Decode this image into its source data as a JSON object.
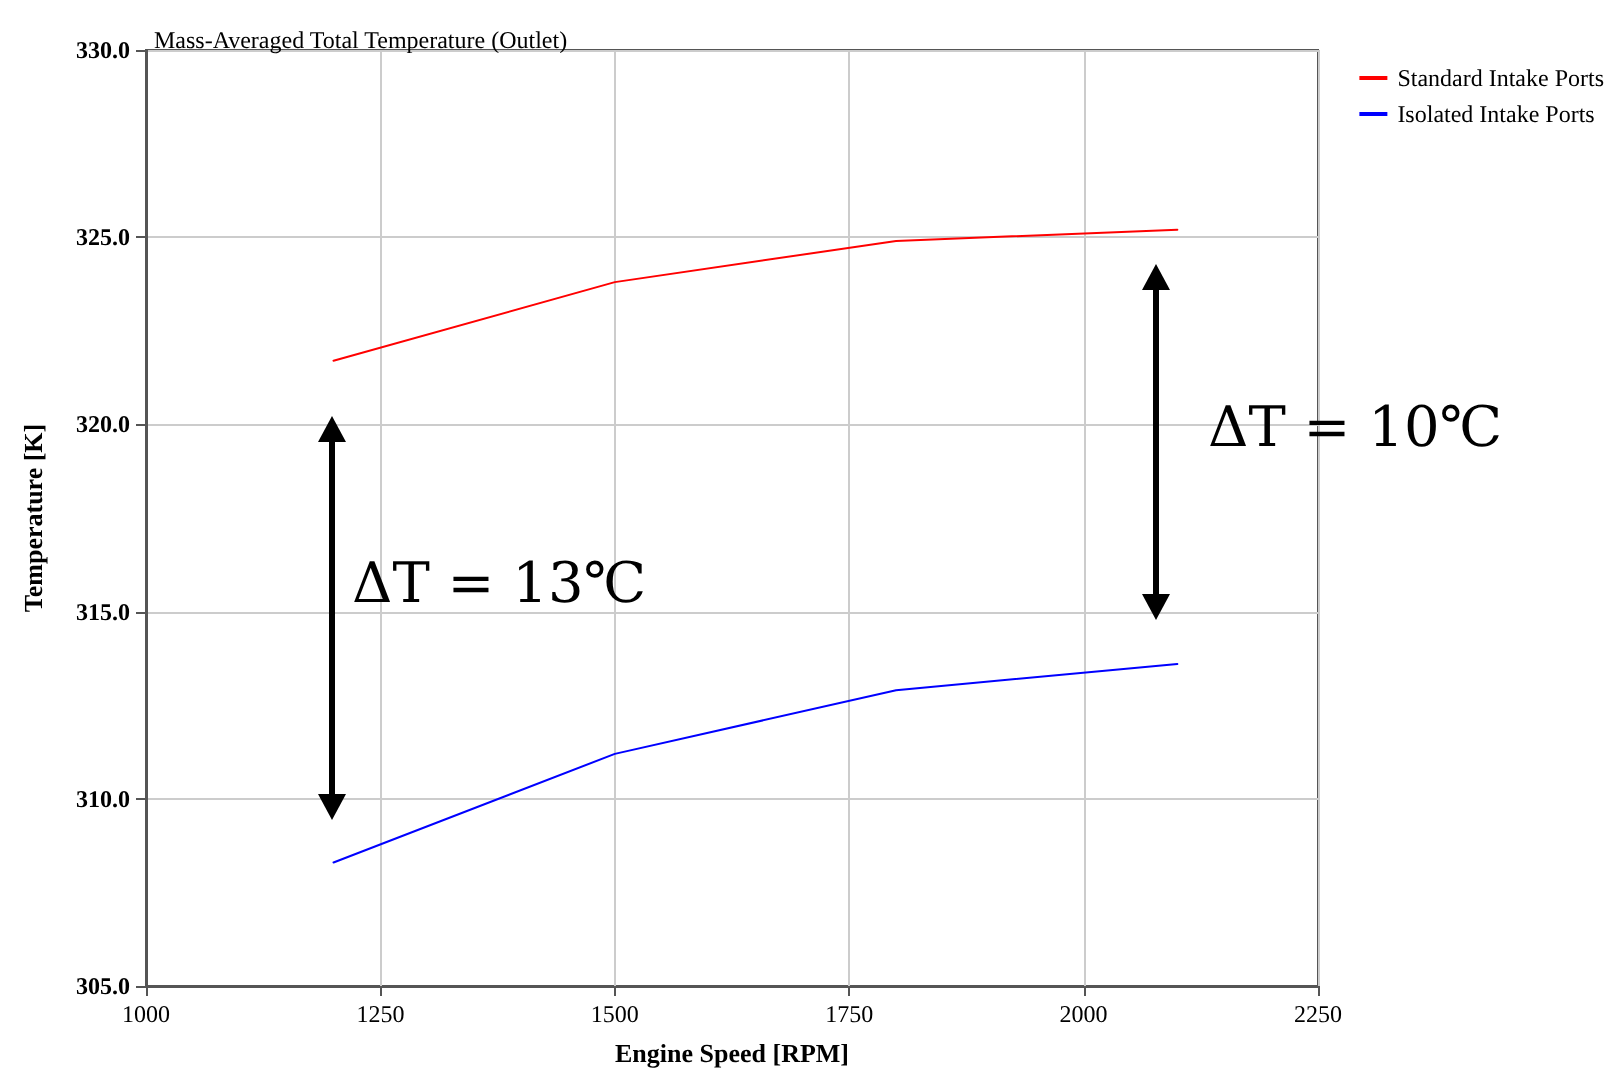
{
  "chart_data": {
    "type": "line",
    "title": "Mass-Averaged Total Temperature (Outlet)",
    "xlabel": "Engine Speed [RPM]",
    "ylabel": "Temperature [K]",
    "x": [
      1200,
      1500,
      1800,
      2100
    ],
    "series": [
      {
        "name": "Standard Intake Ports",
        "color": "#ff0000",
        "values": [
          321.7,
          323.8,
          324.9,
          325.2
        ]
      },
      {
        "name": "Isolated Intake Ports",
        "color": "#0000ff",
        "values": [
          308.3,
          311.2,
          312.9,
          313.6
        ]
      }
    ],
    "xlim": [
      1000,
      2250
    ],
    "xticks": [
      1000,
      1250,
      1500,
      1750,
      2000,
      2250
    ],
    "ylim": [
      305,
      330
    ],
    "yticks": [
      {
        "value": 305,
        "label": "305.0"
      },
      {
        "value": 310,
        "label": "310.0"
      },
      {
        "value": 315,
        "label": "315.0"
      },
      {
        "value": 320,
        "label": "320.0"
      },
      {
        "value": 325,
        "label": "325.0"
      },
      {
        "value": 330,
        "label": "330.0"
      }
    ],
    "annotations": [
      "ΔT = 13℃",
      "ΔT = 10℃"
    ],
    "grid": true,
    "legend": "top right",
    "marker": "none",
    "line_style": "solid"
  }
}
